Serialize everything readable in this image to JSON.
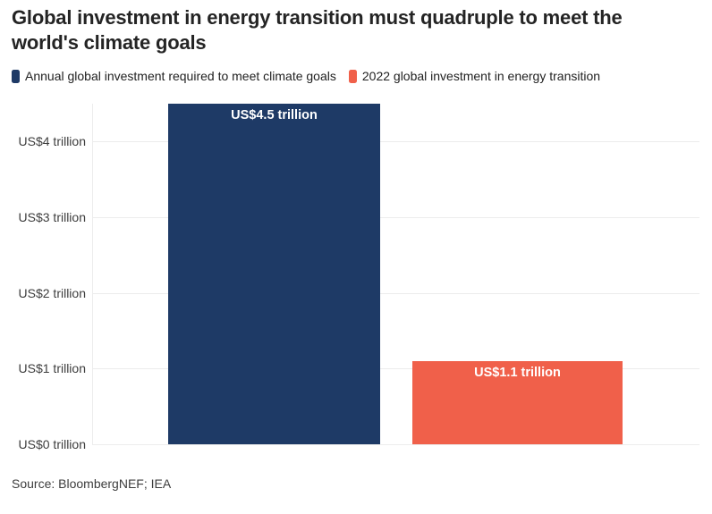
{
  "title": "Global investment in energy transition must quadruple to meet the world's climate goals",
  "legend": [
    {
      "label": "Annual global investment required to meet climate goals",
      "color": "#1e3a66"
    },
    {
      "label": "2022 global investment in energy transition",
      "color": "#f0604a"
    }
  ],
  "source": "Source: BloombergNEF; IEA",
  "chart_data": {
    "type": "bar",
    "title": "Global investment in energy transition must quadruple to meet the world's climate goals",
    "categories": [
      "Annual global investment required to meet climate goals",
      "2022 global investment in energy transition"
    ],
    "values": [
      4.5,
      1.1
    ],
    "unit": "US$ trillion",
    "bar_labels": [
      "US$4.5 trillion",
      "US$1.1 trillion"
    ],
    "colors": [
      "#1e3a66",
      "#f0604a"
    ],
    "ylim": [
      0,
      4.5
    ],
    "yticks": [
      {
        "value": 0,
        "label": "US$0 trillion"
      },
      {
        "value": 1,
        "label": "US$1 trillion"
      },
      {
        "value": 2,
        "label": "US$2 trillion"
      },
      {
        "value": 3,
        "label": "US$3 trillion"
      },
      {
        "value": 4,
        "label": "US$4 trillion"
      }
    ],
    "grid": true,
    "legend_position": "top",
    "source": "Source: BloombergNEF; IEA"
  }
}
